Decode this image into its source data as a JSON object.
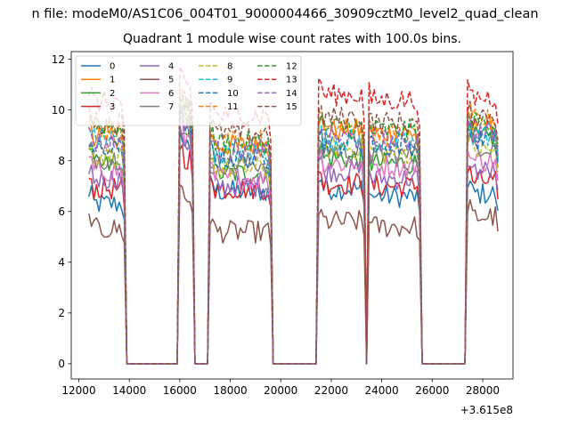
{
  "figure_title": "n file: modeM0/AS1C06_004T01_9000004466_30909cztM0_level2_quad_clean",
  "chart_data": {
    "type": "line",
    "title": "Quadrant 1 module wise count rates with 100.0s bins.",
    "xlabel": "",
    "ylabel": "",
    "x_offset_label": "+3.615e8",
    "xlim": [
      11700,
      29200
    ],
    "ylim": [
      -0.6,
      12.3
    ],
    "xticks": [
      12000,
      14000,
      16000,
      18000,
      20000,
      22000,
      24000,
      26000,
      28000
    ],
    "xtick_labels": [
      "12000",
      "14000",
      "16000",
      "18000",
      "20000",
      "22000",
      "24000",
      "26000",
      "28000"
    ],
    "yticks": [
      0,
      2,
      4,
      6,
      8,
      10,
      12
    ],
    "ytick_labels": [
      "0",
      "2",
      "4",
      "6",
      "8",
      "10",
      "12"
    ],
    "grid": false,
    "legend": {
      "placement": "top-left",
      "columns": 4
    },
    "segments": [
      {
        "start": 12400,
        "end": 13800
      },
      {
        "start": 16000,
        "end": 16500
      },
      {
        "start": 17200,
        "end": 19600
      },
      {
        "start": 21500,
        "end": 23300
      },
      {
        "start": 23450,
        "end": 25500
      },
      {
        "start": 27400,
        "end": 28600
      }
    ],
    "series": [
      {
        "name": "0",
        "color": "#1f77b4",
        "dash": "solid",
        "levels": [
          6.3,
          8.6,
          6.8,
          6.9,
          6.6,
          6.7
        ]
      },
      {
        "name": "1",
        "color": "#ff7f0e",
        "dash": "solid",
        "levels": [
          9.0,
          9.6,
          8.6,
          9.2,
          9.1,
          9.3
        ]
      },
      {
        "name": "2",
        "color": "#2ca02c",
        "dash": "solid",
        "levels": [
          7.8,
          8.8,
          7.5,
          8.1,
          7.9,
          8.9
        ]
      },
      {
        "name": "3",
        "color": "#d62728",
        "dash": "solid",
        "levels": [
          6.9,
          8.1,
          6.9,
          7.1,
          7.0,
          7.2
        ]
      },
      {
        "name": "4",
        "color": "#9467bd",
        "dash": "solid",
        "levels": [
          7.3,
          8.7,
          7.0,
          7.6,
          7.3,
          7.6
        ]
      },
      {
        "name": "5",
        "color": "#8c564b",
        "dash": "solid",
        "levels": [
          5.3,
          6.6,
          5.2,
          5.6,
          5.4,
          5.8
        ]
      },
      {
        "name": "6",
        "color": "#e377c2",
        "dash": "solid",
        "levels": [
          7.6,
          8.9,
          7.3,
          7.9,
          7.8,
          8.0
        ]
      },
      {
        "name": "7",
        "color": "#7f7f7f",
        "dash": "solid",
        "levels": [
          8.1,
          9.2,
          7.9,
          8.4,
          8.2,
          8.6
        ]
      },
      {
        "name": "8",
        "color": "#bcbd22",
        "dash": "dashed",
        "levels": [
          8.2,
          9.3,
          7.7,
          8.5,
          8.3,
          8.4
        ]
      },
      {
        "name": "9",
        "color": "#17becf",
        "dash": "dashed",
        "levels": [
          8.9,
          9.7,
          8.3,
          8.8,
          8.7,
          9.0
        ]
      },
      {
        "name": "10",
        "color": "#1f77b4",
        "dash": "dashed",
        "levels": [
          8.4,
          9.5,
          8.1,
          8.7,
          8.6,
          8.8
        ]
      },
      {
        "name": "11",
        "color": "#ff7f0e",
        "dash": "dashed",
        "levels": [
          9.2,
          10.2,
          8.8,
          9.4,
          9.0,
          9.6
        ]
      },
      {
        "name": "12",
        "color": "#2ca02c",
        "dash": "dashed",
        "levels": [
          9.4,
          10.0,
          8.7,
          9.3,
          9.2,
          9.5
        ]
      },
      {
        "name": "13",
        "color": "#d62728",
        "dash": "dashed",
        "levels": [
          10.3,
          11.0,
          9.8,
          10.6,
          10.4,
          10.5
        ]
      },
      {
        "name": "14",
        "color": "#9467bd",
        "dash": "dashed",
        "levels": [
          8.7,
          9.4,
          8.4,
          8.9,
          8.8,
          9.1
        ]
      },
      {
        "name": "15",
        "color": "#8c564b",
        "dash": "dashed",
        "levels": [
          9.5,
          10.4,
          9.1,
          9.7,
          9.5,
          9.8
        ]
      }
    ]
  }
}
